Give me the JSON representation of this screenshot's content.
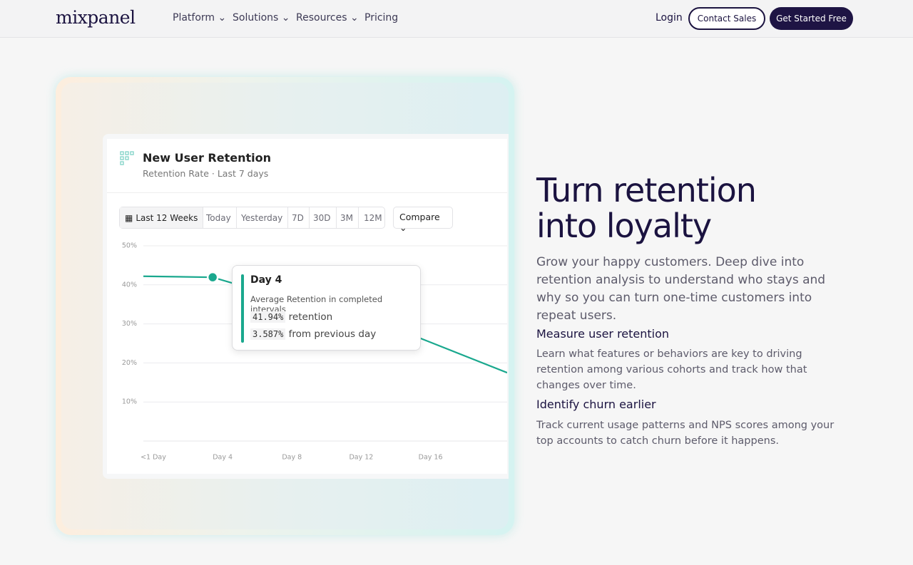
{
  "nav": {
    "logo": "mixpanel",
    "links": [
      "Platform",
      "Solutions",
      "Resources",
      "Pricing"
    ],
    "login": "Login",
    "contact": "Contact Sales",
    "cta": "Get Started Free"
  },
  "card": {
    "title": "New User Retention",
    "subtitle": "Retention Rate · Last 7 days",
    "ranges": [
      "Last 12 Weeks",
      "Today",
      "Yesterday",
      "7D",
      "30D",
      "3M",
      "12M"
    ],
    "compare": "Compare"
  },
  "tooltip": {
    "title": "Day 4",
    "caption": "Average Retention in completed intervals",
    "rows": [
      {
        "value": "41.94%",
        "label": "retention"
      },
      {
        "value": "3.587%",
        "label": "from previous day"
      }
    ]
  },
  "chart_data": {
    "type": "line",
    "x": [
      0,
      4,
      16,
      21
    ],
    "values": [
      42.2,
      41.94,
      26.3,
      17.5
    ],
    "color": "#1aa88e",
    "xlim": [
      0,
      21
    ],
    "ylim": [
      0,
      50
    ],
    "xticks": [
      {
        "value": 0,
        "label": "<1 Day"
      },
      {
        "value": 4,
        "label": "Day 4"
      },
      {
        "value": 8,
        "label": "Day 8"
      },
      {
        "value": 12,
        "label": "Day 12"
      },
      {
        "value": 16,
        "label": "Day 16"
      }
    ],
    "yticks": [
      {
        "value": 10,
        "label": "10%"
      },
      {
        "value": 20,
        "label": "20%"
      },
      {
        "value": 30,
        "label": "30%"
      },
      {
        "value": 40,
        "label": "40%"
      },
      {
        "value": 50,
        "label": "50%"
      }
    ],
    "grid": true
  },
  "hero": {
    "title_lines": [
      "Turn retention",
      "into loyalty"
    ],
    "lead": "Grow your happy customers. Deep dive into retention analysis to understand who stays and why so you can turn one-time customers into repeat users.",
    "features": [
      {
        "title": "Measure user retention",
        "text": "Learn what features or behaviors are key to driving retention among various cohorts and track how that changes over time."
      },
      {
        "title": "Identify churn earlier",
        "text": "Track current usage patterns and NPS scores among your top accounts to catch churn before it happens."
      }
    ]
  }
}
